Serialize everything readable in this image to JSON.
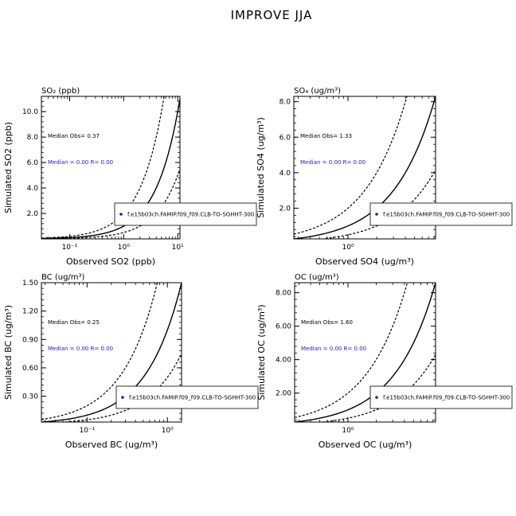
{
  "suptitle": "IMPROVE JJA",
  "chart_data": [
    {
      "type": "scatter",
      "title": "SO₂ (ppb)",
      "xlabel": "Observed SO2 (ppb)",
      "ylabel": "Simulated SO2 (ppb)",
      "x_scale": "log",
      "y_scale": "linear",
      "xlim": [
        0.03,
        11
      ],
      "ylim": [
        0,
        11.2
      ],
      "xticks": [
        {
          "value": 0.1,
          "label": "10⁻¹"
        },
        {
          "value": 1,
          "label": "10⁰"
        },
        {
          "value": 10,
          "label": "10¹"
        }
      ],
      "yticks": [
        {
          "value": 2,
          "label": "2.0"
        },
        {
          "value": 4,
          "label": "4.0"
        },
        {
          "value": 6,
          "label": "6.0"
        },
        {
          "value": 8,
          "label": "8.0"
        },
        {
          "value": 10,
          "label": "10.0"
        }
      ],
      "median_obs_text": "Median Obs= 0.37",
      "median_sim_text": "Median = 0.00 R= 0.00",
      "legend": "f.e15b03ch.FAMIP.f09_f09.CLB-TO-SGHHT-300",
      "reference_lines": [
        {
          "slope": 1,
          "style": "solid"
        },
        {
          "slope": 2,
          "style": "dashed"
        },
        {
          "slope": 0.5,
          "style": "dashed"
        }
      ],
      "series": [
        {
          "name": "f.e15b03ch.FAMIP.f09_f09.CLB-TO-SGHHT-300",
          "x": [],
          "y": []
        }
      ]
    },
    {
      "type": "scatter",
      "title": "SO₄ (ug/m³)",
      "xlabel": "Observed SO4 (ug/m³)",
      "ylabel": "Simulated SO4 (ug/m³)",
      "x_scale": "log",
      "y_scale": "linear",
      "xlim": [
        0.27,
        8.3
      ],
      "ylim": [
        0.27,
        8.3
      ],
      "xticks": [
        {
          "value": 1,
          "label": "10⁰"
        }
      ],
      "yticks": [
        {
          "value": 2,
          "label": "2.0"
        },
        {
          "value": 4,
          "label": "4.0"
        },
        {
          "value": 6,
          "label": "6.0"
        },
        {
          "value": 8,
          "label": "8.0"
        }
      ],
      "median_obs_text": "Median Obs= 1.33",
      "median_sim_text": "Median = 0.00 R= 0.00",
      "legend": "f.e15b03ch.FAMIP.f09_f09.CLB-TO-SGHHT-300",
      "reference_lines": [
        {
          "slope": 1,
          "style": "solid"
        },
        {
          "slope": 2,
          "style": "dashed"
        },
        {
          "slope": 0.5,
          "style": "dashed"
        }
      ],
      "series": [
        {
          "name": "f.e15b03ch.FAMIP.f09_f09.CLB-TO-SGHHT-300",
          "x": [],
          "y": []
        }
      ]
    },
    {
      "type": "scatter",
      "title": "BC (ug/m³)",
      "xlabel": "Observed BC (ug/m³)",
      "ylabel": "Simulated BC (ug/m³)",
      "x_scale": "log",
      "y_scale": "linear",
      "xlim": [
        0.027,
        1.5
      ],
      "ylim": [
        0.027,
        1.5
      ],
      "xticks": [
        {
          "value": 0.1,
          "label": "10⁻¹"
        },
        {
          "value": 1,
          "label": "10⁰"
        }
      ],
      "yticks": [
        {
          "value": 0.3,
          "label": "0.30"
        },
        {
          "value": 0.6,
          "label": "0.60"
        },
        {
          "value": 0.9,
          "label": "0.90"
        },
        {
          "value": 1.2,
          "label": "1.20"
        },
        {
          "value": 1.5,
          "label": "1.50"
        }
      ],
      "median_obs_text": "Median Obs= 0.25",
      "median_sim_text": "Median = 0.00 R= 0.00",
      "legend": "f.e15b03ch.FAMIP.f09_f09.CLB-TO-SGHHT-300",
      "reference_lines": [
        {
          "slope": 1,
          "style": "solid"
        },
        {
          "slope": 2,
          "style": "dashed"
        },
        {
          "slope": 0.5,
          "style": "dashed"
        }
      ],
      "series": [
        {
          "name": "f.e15b03ch.FAMIP.f09_f09.CLB-TO-SGHHT-300",
          "x": [],
          "y": []
        }
      ]
    },
    {
      "type": "scatter",
      "title": "OC (ug/m³)",
      "xlabel": "Observed OC (ug/m³)",
      "ylabel": "Simulated OC (ug/m³)",
      "x_scale": "log",
      "y_scale": "linear",
      "xlim": [
        0.27,
        8.6
      ],
      "ylim": [
        0.27,
        8.6
      ],
      "xticks": [
        {
          "value": 1,
          "label": "10⁰"
        }
      ],
      "yticks": [
        {
          "value": 2,
          "label": "2.00"
        },
        {
          "value": 4,
          "label": "4.00"
        },
        {
          "value": 6,
          "label": "6.00"
        },
        {
          "value": 8,
          "label": "8.00"
        }
      ],
      "median_obs_text": "Median Obs= 1.60",
      "median_sim_text": "Median = 0.00 R= 0.00",
      "legend": "f.e15b03ch.FAMIP.f09_f09.CLB-TO-SGHHT-300",
      "reference_lines": [
        {
          "slope": 1,
          "style": "solid"
        },
        {
          "slope": 2,
          "style": "dashed"
        },
        {
          "slope": 0.5,
          "style": "dashed"
        }
      ],
      "series": [
        {
          "name": "f.e15b03ch.FAMIP.f09_f09.CLB-TO-SGHHT-300",
          "x": [],
          "y": []
        }
      ]
    }
  ],
  "colors": {
    "median_sim_text": "#1a1adc",
    "legend_marker": "#1a1adc",
    "axes": "#000000"
  }
}
